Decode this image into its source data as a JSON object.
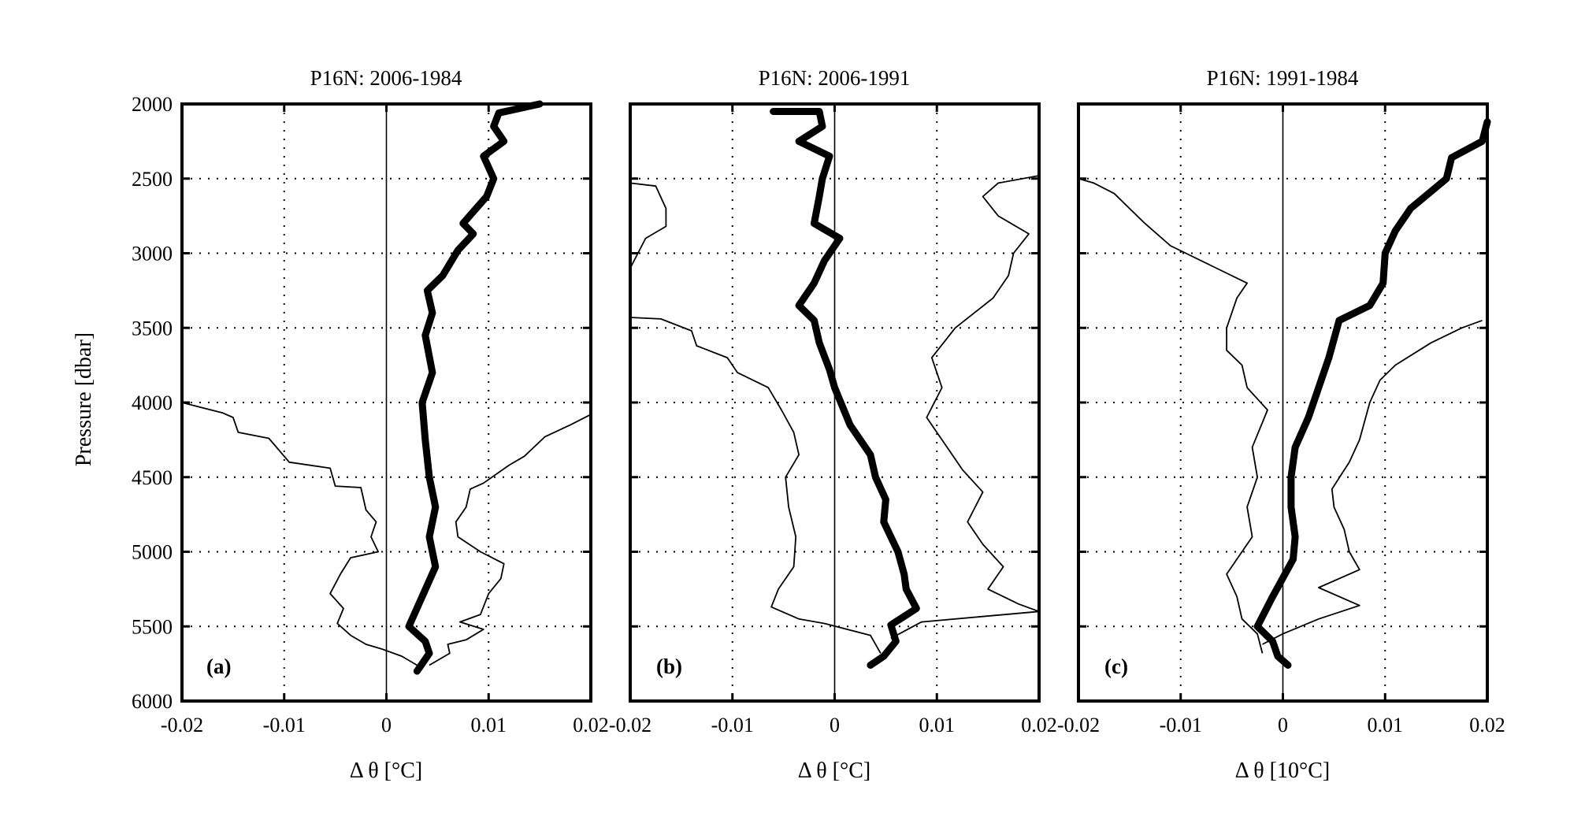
{
  "chart_data": [
    {
      "type": "line",
      "title": "P16N: 2006-1984",
      "panel_label": "(a)",
      "xlabel": "Δ θ [°C]",
      "ylabel": "Pressure [dbar]",
      "xlim": [
        -0.02,
        0.02
      ],
      "ylim": [
        6000,
        2000
      ],
      "y_reversed": true,
      "xticks": [
        "-0.02",
        "-0.01",
        "0",
        "0.01",
        "0.02"
      ],
      "yticks": [
        "2000",
        "2500",
        "3000",
        "3500",
        "4000",
        "4500",
        "5000",
        "5500",
        "6000"
      ],
      "grid": true,
      "series": [
        {
          "style": "thick",
          "points": [
            [
              0.015,
              2000
            ],
            [
              0.011,
              2060
            ],
            [
              0.0105,
              2150
            ],
            [
              0.0115,
              2250
            ],
            [
              0.0095,
              2350
            ],
            [
              0.0105,
              2500
            ],
            [
              0.0098,
              2620
            ],
            [
              0.0075,
              2800
            ],
            [
              0.0085,
              2870
            ],
            [
              0.007,
              2980
            ],
            [
              0.0055,
              3150
            ],
            [
              0.004,
              3250
            ],
            [
              0.0045,
              3400
            ],
            [
              0.0038,
              3550
            ],
            [
              0.0045,
              3800
            ],
            [
              0.0035,
              4000
            ],
            [
              0.0038,
              4250
            ],
            [
              0.0042,
              4500
            ],
            [
              0.0048,
              4700
            ],
            [
              0.0042,
              4900
            ],
            [
              0.0048,
              5100
            ],
            [
              0.0035,
              5300
            ],
            [
              0.0022,
              5500
            ],
            [
              0.0038,
              5600
            ],
            [
              0.0042,
              5680
            ],
            [
              0.003,
              5800
            ]
          ]
        },
        {
          "style": "thin",
          "points": [
            [
              -0.02,
              4000
            ],
            [
              -0.016,
              4070
            ],
            [
              -0.015,
              4100
            ],
            [
              -0.0145,
              4200
            ],
            [
              -0.0115,
              4240
            ],
            [
              -0.0095,
              4400
            ],
            [
              -0.0055,
              4440
            ],
            [
              -0.005,
              4560
            ],
            [
              -0.0025,
              4570
            ],
            [
              -0.002,
              4720
            ],
            [
              -0.001,
              4800
            ],
            [
              -0.0015,
              4900
            ],
            [
              -0.0008,
              5000
            ],
            [
              -0.0035,
              5040
            ],
            [
              -0.0045,
              5150
            ],
            [
              -0.0055,
              5280
            ],
            [
              -0.0042,
              5380
            ],
            [
              -0.0048,
              5480
            ],
            [
              -0.0035,
              5560
            ],
            [
              -0.002,
              5620
            ],
            [
              -0.0005,
              5650
            ],
            [
              0.0015,
              5700
            ],
            [
              0.003,
              5760
            ]
          ]
        },
        {
          "style": "thin",
          "points": [
            [
              0.02,
              4080
            ],
            [
              0.018,
              4150
            ],
            [
              0.0155,
              4230
            ],
            [
              0.0135,
              4360
            ],
            [
              0.012,
              4420
            ],
            [
              0.0095,
              4540
            ],
            [
              0.0082,
              4580
            ],
            [
              0.0078,
              4700
            ],
            [
              0.0068,
              4800
            ],
            [
              0.007,
              4900
            ],
            [
              0.0092,
              5000
            ],
            [
              0.0115,
              5080
            ],
            [
              0.0112,
              5180
            ],
            [
              0.01,
              5280
            ],
            [
              0.0092,
              5420
            ],
            [
              0.0072,
              5470
            ],
            [
              0.0095,
              5520
            ],
            [
              0.0078,
              5590
            ],
            [
              0.006,
              5620
            ],
            [
              0.0062,
              5680
            ],
            [
              0.0042,
              5760
            ]
          ]
        }
      ]
    },
    {
      "type": "line",
      "title": "P16N: 2006-1991",
      "panel_label": "(b)",
      "xlabel": "Δ θ [°C]",
      "xlim": [
        -0.02,
        0.02
      ],
      "ylim": [
        6000,
        2000
      ],
      "y_reversed": true,
      "xticks": [
        "-0.02",
        "-0.01",
        "0",
        "0.01",
        "0.02"
      ],
      "grid": true,
      "series": [
        {
          "style": "thick",
          "points": [
            [
              -0.006,
              2050
            ],
            [
              -0.0015,
              2050
            ],
            [
              -0.0012,
              2150
            ],
            [
              -0.0035,
              2250
            ],
            [
              -0.0005,
              2350
            ],
            [
              -0.0012,
              2500
            ],
            [
              -0.0015,
              2620
            ],
            [
              -0.002,
              2800
            ],
            [
              0.0005,
              2900
            ],
            [
              -0.001,
              3050
            ],
            [
              -0.002,
              3200
            ],
            [
              -0.0035,
              3350
            ],
            [
              -0.002,
              3450
            ],
            [
              -0.0015,
              3600
            ],
            [
              -0.0005,
              3780
            ],
            [
              0,
              3900
            ],
            [
              0.0015,
              4150
            ],
            [
              0.0035,
              4350
            ],
            [
              0.004,
              4500
            ],
            [
              0.005,
              4650
            ],
            [
              0.0048,
              4800
            ],
            [
              0.0062,
              5000
            ],
            [
              0.0068,
              5150
            ],
            [
              0.007,
              5250
            ],
            [
              0.008,
              5380
            ],
            [
              0.0055,
              5490
            ],
            [
              0.006,
              5600
            ],
            [
              0.0048,
              5700
            ],
            [
              0.0035,
              5760
            ]
          ]
        },
        {
          "style": "thin",
          "points": [
            [
              -0.02,
              2530
            ],
            [
              -0.0175,
              2550
            ],
            [
              -0.0165,
              2700
            ],
            [
              -0.0165,
              2820
            ],
            [
              -0.0185,
              2900
            ],
            [
              -0.02,
              3100
            ],
            [
              -0.02,
              3430
            ],
            [
              -0.017,
              3440
            ],
            [
              -0.014,
              3520
            ],
            [
              -0.0135,
              3620
            ],
            [
              -0.0105,
              3700
            ],
            [
              -0.0095,
              3800
            ],
            [
              -0.0065,
              3900
            ],
            [
              -0.0052,
              4050
            ],
            [
              -0.004,
              4200
            ],
            [
              -0.0035,
              4350
            ],
            [
              -0.0048,
              4500
            ],
            [
              -0.0045,
              4700
            ],
            [
              -0.0038,
              4900
            ],
            [
              -0.004,
              5100
            ],
            [
              -0.0055,
              5250
            ],
            [
              -0.0062,
              5370
            ],
            [
              -0.0035,
              5450
            ],
            [
              -0.001,
              5480
            ],
            [
              0.0035,
              5560
            ],
            [
              0.0045,
              5680
            ]
          ]
        },
        {
          "style": "thin",
          "points": [
            [
              0.02,
              2480
            ],
            [
              0.016,
              2530
            ],
            [
              0.0145,
              2620
            ],
            [
              0.016,
              2750
            ],
            [
              0.019,
              2870
            ],
            [
              0.0175,
              3000
            ],
            [
              0.017,
              3150
            ],
            [
              0.0155,
              3300
            ],
            [
              0.0118,
              3500
            ],
            [
              0.0095,
              3700
            ],
            [
              0.0105,
              3900
            ],
            [
              0.009,
              4100
            ],
            [
              0.011,
              4300
            ],
            [
              0.0125,
              4450
            ],
            [
              0.0145,
              4600
            ],
            [
              0.013,
              4800
            ],
            [
              0.0145,
              4950
            ],
            [
              0.0165,
              5100
            ],
            [
              0.015,
              5250
            ],
            [
              0.018,
              5350
            ],
            [
              0.02,
              5400
            ],
            [
              0.0085,
              5470
            ],
            [
              0.0055,
              5580
            ]
          ]
        }
      ]
    },
    {
      "type": "line",
      "title": "P16N: 1991-1984",
      "panel_label": "(c)",
      "xlabel": "Δ θ [10°C]",
      "xlim": [
        -0.02,
        0.02
      ],
      "ylim": [
        6000,
        2000
      ],
      "y_reversed": true,
      "xticks": [
        "-0.02",
        "-0.01",
        "0",
        "0.01",
        "0.02"
      ],
      "grid": true,
      "series": [
        {
          "style": "thick",
          "points": [
            [
              0.02,
              2120
            ],
            [
              0.0195,
              2250
            ],
            [
              0.0165,
              2360
            ],
            [
              0.016,
              2500
            ],
            [
              0.0125,
              2700
            ],
            [
              0.011,
              2850
            ],
            [
              0.01,
              3000
            ],
            [
              0.0098,
              3200
            ],
            [
              0.0085,
              3350
            ],
            [
              0.0055,
              3450
            ],
            [
              0.0045,
              3700
            ],
            [
              0.0035,
              3900
            ],
            [
              0.0025,
              4100
            ],
            [
              0.0012,
              4300
            ],
            [
              0.0008,
              4500
            ],
            [
              0.0008,
              4700
            ],
            [
              0.0012,
              4900
            ],
            [
              0.001,
              5050
            ],
            [
              -0.001,
              5300
            ],
            [
              -0.0025,
              5500
            ],
            [
              -0.001,
              5600
            ],
            [
              -0.0005,
              5700
            ],
            [
              0.0005,
              5760
            ]
          ]
        },
        {
          "style": "thin",
          "points": [
            [
              -0.02,
              2500
            ],
            [
              -0.0185,
              2530
            ],
            [
              -0.0165,
              2600
            ],
            [
              -0.0135,
              2800
            ],
            [
              -0.011,
              2950
            ],
            [
              -0.0065,
              3100
            ],
            [
              -0.0035,
              3200
            ],
            [
              -0.0045,
              3300
            ],
            [
              -0.0055,
              3500
            ],
            [
              -0.0055,
              3650
            ],
            [
              -0.004,
              3750
            ],
            [
              -0.0035,
              3900
            ],
            [
              -0.0015,
              4050
            ],
            [
              -0.003,
              4300
            ],
            [
              -0.0025,
              4500
            ],
            [
              -0.0035,
              4700
            ],
            [
              -0.003,
              4900
            ],
            [
              -0.0055,
              5150
            ],
            [
              -0.0045,
              5300
            ],
            [
              -0.004,
              5450
            ],
            [
              -0.0025,
              5550
            ],
            [
              -0.002,
              5680
            ]
          ]
        },
        {
          "style": "thin",
          "points": [
            [
              0.0195,
              3450
            ],
            [
              0.0175,
              3500
            ],
            [
              0.0145,
              3600
            ],
            [
              0.011,
              3750
            ],
            [
              0.0095,
              3850
            ],
            [
              0.0085,
              4000
            ],
            [
              0.0075,
              4250
            ],
            [
              0.0065,
              4400
            ],
            [
              0.0048,
              4580
            ],
            [
              0.005,
              4700
            ],
            [
              0.006,
              4850
            ],
            [
              0.0065,
              5000
            ],
            [
              0.0075,
              5120
            ],
            [
              0.0035,
              5240
            ],
            [
              0.0075,
              5360
            ],
            [
              0.0035,
              5450
            ],
            [
              0,
              5550
            ],
            [
              -0.002,
              5620
            ]
          ]
        }
      ]
    }
  ]
}
